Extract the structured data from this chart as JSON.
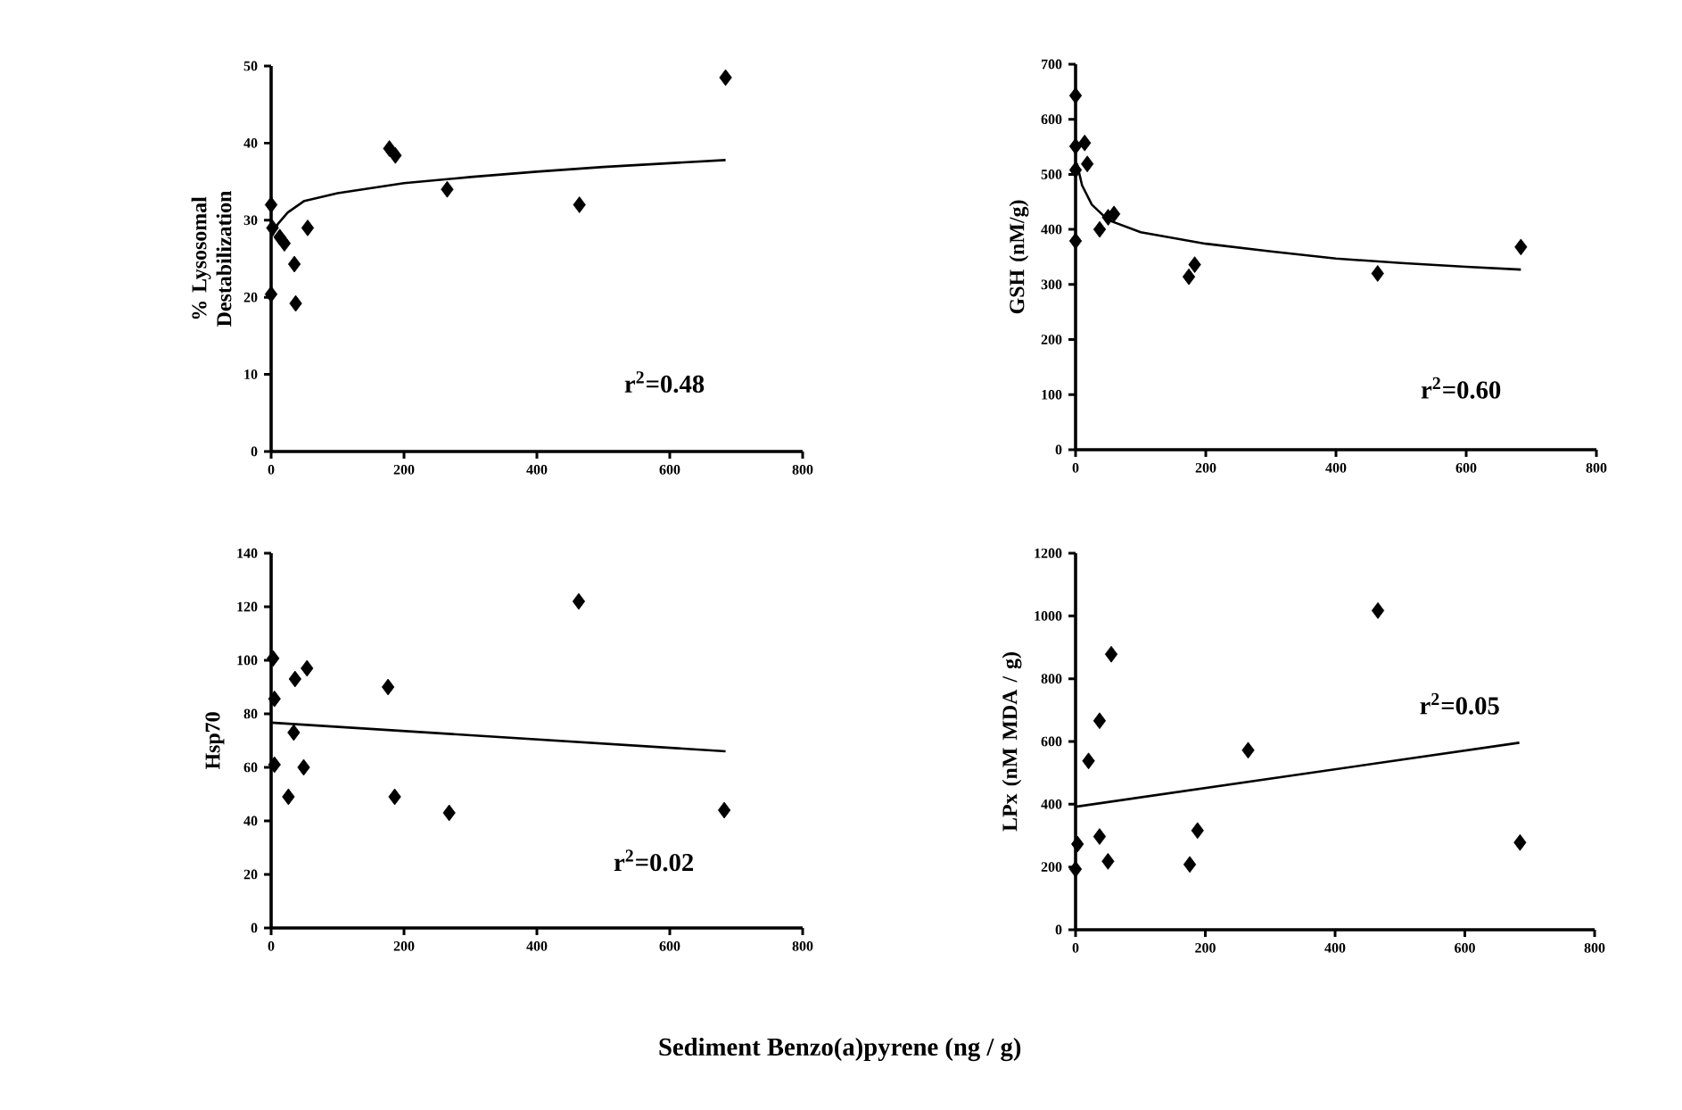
{
  "chart_data": [
    {
      "type": "scatter",
      "ylabel": "% Lysosomal Destabilization",
      "annotations": [
        "r$^{2}$=0.48"
      ],
      "xlim": [
        0,
        800
      ],
      "xticks": [
        0,
        200,
        400,
        600,
        800
      ],
      "ylim": [
        0,
        50
      ],
      "yticks": [
        0,
        10,
        20,
        30,
        40,
        50
      ],
      "series": [
        {
          "marker": "diamond",
          "color": "#000000",
          "x": [
            0,
            0,
            2,
            13,
            20,
            35,
            37,
            55,
            178,
            187,
            265,
            464,
            684
          ],
          "values": [
            32,
            20.4,
            29,
            27.8,
            27,
            24.3,
            19.2,
            29,
            39.3,
            38.4,
            34,
            32,
            48.5
          ]
        },
        {
          "type": "line",
          "marker": "none",
          "color": "#000000",
          "x": [
            2,
            10,
            25,
            50,
            100,
            200,
            300,
            400,
            500,
            600,
            684
          ],
          "values": [
            28,
            29.5,
            31,
            32.5,
            33.5,
            34.8,
            35.6,
            36.3,
            36.9,
            37.4,
            37.8
          ]
        }
      ]
    },
    {
      "type": "scatter",
      "ylabel": "GSH (nM/g)",
      "annotations": [
        "r$^{2}$=0.60"
      ],
      "xlim": [
        0,
        800
      ],
      "xticks": [
        0,
        200,
        400,
        600,
        800
      ],
      "ylim": [
        0,
        700
      ],
      "yticks": [
        0,
        100,
        200,
        300,
        400,
        500,
        600,
        700
      ],
      "series": [
        {
          "marker": "diamond",
          "color": "#000000",
          "x": [
            0,
            0,
            0,
            0,
            14,
            18,
            37,
            50,
            59,
            174,
            183,
            464,
            684
          ],
          "values": [
            643,
            551,
            508,
            379,
            557,
            519,
            400,
            422,
            428,
            314,
            336,
            320,
            368
          ]
        },
        {
          "type": "line",
          "marker": "none",
          "color": "#000000",
          "x": [
            2,
            10,
            25,
            50,
            100,
            200,
            300,
            400,
            500,
            600,
            684
          ],
          "values": [
            520,
            480,
            445,
            417,
            395,
            374,
            360,
            347,
            339,
            332,
            327
          ]
        }
      ]
    },
    {
      "type": "scatter",
      "ylabel": "Hsp70",
      "xlabel": "Sediment Benzo(a)pyrene (ng / g)",
      "annotations": [
        "r$^{2}$=0.02"
      ],
      "xlim": [
        0,
        800
      ],
      "xticks": [
        0,
        200,
        400,
        600,
        800
      ],
      "ylim": [
        0,
        140
      ],
      "yticks": [
        0,
        20,
        40,
        60,
        80,
        100,
        120,
        140
      ],
      "series": [
        {
          "marker": "diamond",
          "color": "#000000",
          "x": [
            3,
            5,
            5,
            26,
            34,
            36,
            54,
            49,
            176,
            186,
            268,
            463,
            682
          ],
          "values": [
            100.7,
            85.6,
            61,
            49,
            73,
            93,
            97,
            60,
            90,
            49,
            43,
            122,
            44
          ]
        },
        {
          "type": "line",
          "marker": "none",
          "color": "#000000",
          "x": [
            0,
            684
          ],
          "values": [
            76.7,
            66
          ]
        }
      ]
    },
    {
      "type": "scatter",
      "ylabel": "LPx (nM MDA / g)",
      "annotations": [
        "r$^{2}$=0.05"
      ],
      "xlim": [
        0,
        800
      ],
      "xticks": [
        0,
        200,
        400,
        600,
        800
      ],
      "ylim": [
        0,
        1200
      ],
      "yticks": [
        0,
        200,
        400,
        600,
        800,
        1000,
        1200
      ],
      "series": [
        {
          "marker": "diamond",
          "color": "#000000",
          "x": [
            0,
            3,
            20,
            37,
            37,
            50,
            55,
            176,
            188,
            266,
            466,
            685
          ],
          "values": [
            193,
            273,
            538,
            297,
            666,
            218,
            878,
            208,
            316,
            572,
            1017,
            278
          ]
        },
        {
          "type": "line",
          "marker": "none",
          "color": "#000000",
          "x": [
            0,
            684
          ],
          "values": [
            392,
            596
          ]
        }
      ]
    }
  ]
}
